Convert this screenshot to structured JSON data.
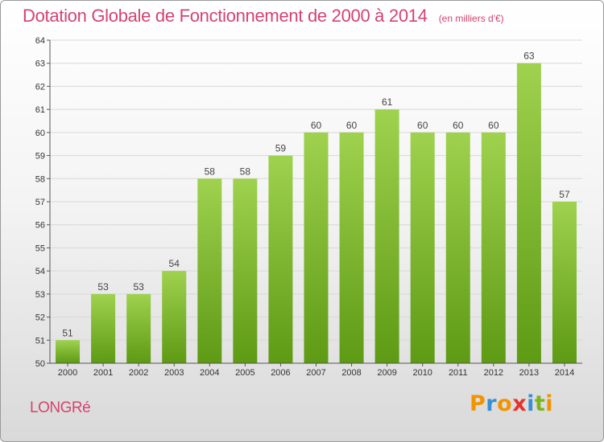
{
  "header": {
    "title": "Dotation Globale de Fonctionnement de 2000 à 2014",
    "unit": "(en milliers d'€)"
  },
  "footer": {
    "commune": "LONGRé",
    "brand_letters": [
      "P",
      "r",
      "o",
      "x",
      "i",
      "t",
      "i"
    ],
    "brand_colors": [
      "#f29400",
      "#3a8fd0",
      "#f29400",
      "#e5322d",
      "#3a8fd0",
      "#7ab51d",
      "#f29400"
    ]
  },
  "colors": {
    "bar_top": "#9fd24e",
    "bar_bottom": "#5e9a14",
    "title": "#d34470",
    "grid": "#d8d8d8",
    "axis": "#555555"
  },
  "chart_data": {
    "type": "bar",
    "categories": [
      "2000",
      "2001",
      "2002",
      "2003",
      "2004",
      "2005",
      "2006",
      "2007",
      "2008",
      "2009",
      "2010",
      "2011",
      "2012",
      "2013",
      "2014"
    ],
    "values": [
      51,
      53,
      53,
      54,
      58,
      58,
      59,
      60,
      60,
      61,
      60,
      60,
      60,
      63,
      57
    ],
    "data_labels": [
      "51",
      "53",
      "53",
      "54",
      "58",
      "58",
      "59",
      "60",
      "60",
      "61",
      "60",
      "60",
      "60",
      "63",
      "57"
    ],
    "ylim": [
      50,
      64
    ],
    "yticks": [
      "50",
      "51",
      "52",
      "53",
      "54",
      "55",
      "56",
      "57",
      "58",
      "59",
      "60",
      "61",
      "62",
      "63",
      "64"
    ],
    "grid": true,
    "legend": "none"
  }
}
